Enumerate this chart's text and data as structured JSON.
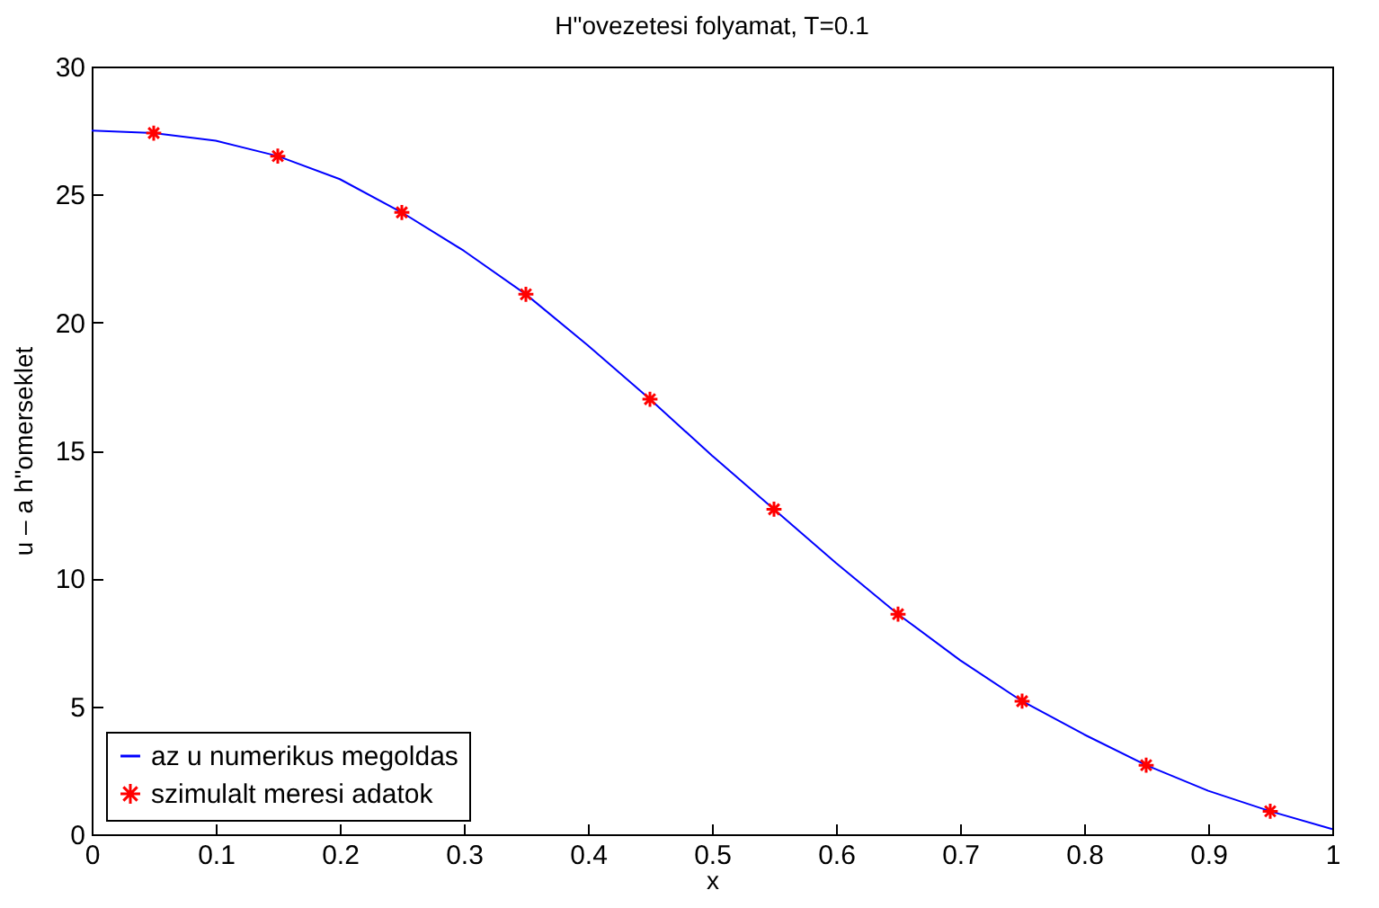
{
  "chart_data": {
    "type": "line",
    "title": "H\"ovezetesi folyamat, T=0.1",
    "xlabel": "x",
    "ylabel": "u – a h\"omerseklet",
    "xlim": [
      0,
      1
    ],
    "xticks": [
      0,
      0.1,
      0.2,
      0.3,
      0.4,
      0.5,
      0.6,
      0.7,
      0.8,
      0.9,
      1
    ],
    "ylim": [
      0,
      30
    ],
    "yticks": [
      0,
      5,
      10,
      15,
      20,
      25,
      30
    ],
    "grid": false,
    "legend": "bottom left",
    "series": [
      {
        "name": "az u numerikus megoldas",
        "color": "#0000ff",
        "line_style": "solid",
        "marker": "none",
        "x": [
          0,
          0.05,
          0.1,
          0.15,
          0.2,
          0.25,
          0.3,
          0.35,
          0.4,
          0.45,
          0.5,
          0.55,
          0.6,
          0.65,
          0.7,
          0.75,
          0.8,
          0.85,
          0.9,
          0.95,
          1
        ],
        "values": [
          27.5,
          27.4,
          27.1,
          26.5,
          25.6,
          24.3,
          22.8,
          21.1,
          19.1,
          17.0,
          14.8,
          12.7,
          10.6,
          8.6,
          6.8,
          5.2,
          3.9,
          2.7,
          1.7,
          0.9,
          0.2
        ]
      },
      {
        "name": "szimulalt meresi adatok",
        "type": "scatter",
        "color": "#ff0000",
        "marker": "cross",
        "x": [
          0.05,
          0.15,
          0.25,
          0.35,
          0.45,
          0.55,
          0.65,
          0.75,
          0.85,
          0.95
        ],
        "values": [
          27.4,
          26.5,
          24.3,
          21.1,
          17.0,
          12.7,
          8.6,
          5.2,
          2.7,
          0.9
        ]
      }
    ]
  }
}
